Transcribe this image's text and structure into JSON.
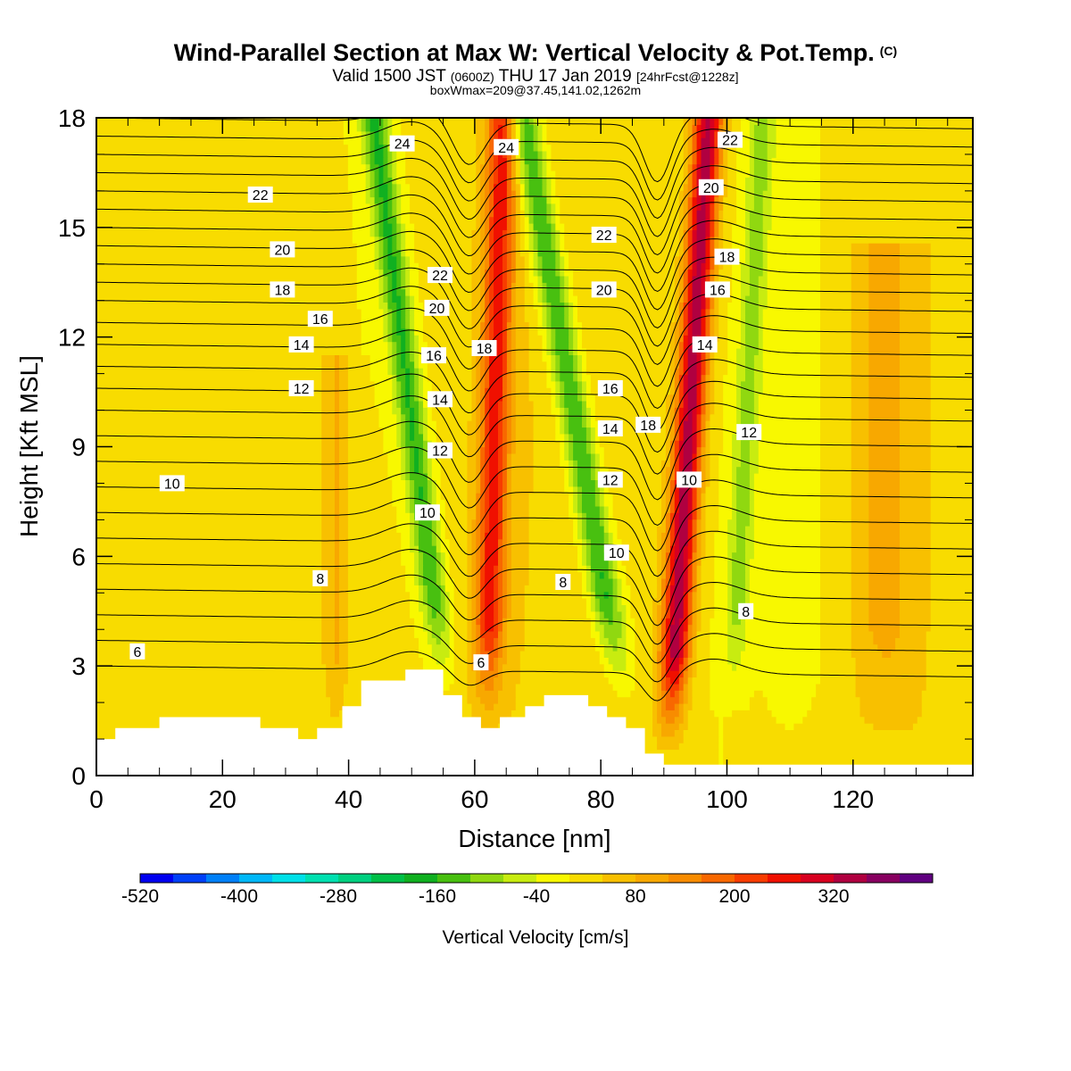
{
  "title": {
    "main": "Wind-Parallel Section at Max W: Vertical Velocity & Pot.Temp.",
    "copyright_mark": "(C)",
    "valid_prefix": "Valid 1500 JST",
    "valid_utc": "(0600Z)",
    "valid_date": "THU 17 Jan 2019",
    "forecast": "[24hrFcst@1228z]",
    "box_info": "boxWmax=209@37.45,141.02,1262m"
  },
  "chart_data": {
    "type": "heatmap",
    "xlabel": "Distance [nm]",
    "ylabel": "Height [Kft MSL]",
    "xlim": [
      0,
      139
    ],
    "ylim": [
      0,
      18
    ],
    "x_ticks": [
      0,
      20,
      40,
      60,
      80,
      100,
      120
    ],
    "y_ticks": [
      0,
      3,
      6,
      9,
      12,
      15,
      18
    ],
    "colorbar": {
      "title": "Vertical Velocity [cm/s]",
      "labels": [
        "-520",
        "-400",
        "-280",
        "-160",
        "-40",
        "80",
        "200",
        "320"
      ],
      "colors": [
        "#0000f0",
        "#0040f8",
        "#0080f8",
        "#00b8f8",
        "#00e0e8",
        "#00e0b0",
        "#00d080",
        "#00c048",
        "#10b020",
        "#48c010",
        "#90d810",
        "#c8ec10",
        "#f8f800",
        "#f8dc00",
        "#f8c000",
        "#f8a800",
        "#f88c00",
        "#f86800",
        "#f83c00",
        "#f01000",
        "#d80020",
        "#b00040",
        "#880060",
        "#600080"
      ],
      "min": -520,
      "step": 40
    },
    "vertical_velocity_features": [
      {
        "x": 55,
        "bottom": 2.8,
        "top": 18,
        "lean": 0.24,
        "peak": -170,
        "width": 2.2
      },
      {
        "x": 62,
        "bottom": 2.0,
        "top": 18,
        "lean": -0.05,
        "peak": 230,
        "width": 2.4
      },
      {
        "x": 83,
        "bottom": 2.6,
        "top": 18,
        "lean": 0.33,
        "peak": -190,
        "width": 2.6
      },
      {
        "x": 91,
        "bottom": 1.2,
        "top": 18,
        "lean": -0.12,
        "peak": 340,
        "width": 2.4
      },
      {
        "x": 101,
        "bottom": 2.5,
        "top": 18,
        "lean": -0.1,
        "peak": -100,
        "width": 2.0
      },
      {
        "x": 38,
        "bottom": 1.0,
        "top": 11,
        "lean": 0.0,
        "peak": 80,
        "width": 2.2
      },
      {
        "x": 125,
        "bottom": 2.0,
        "top": 14,
        "lean": 0.0,
        "peak": 60,
        "width": 4.0
      }
    ],
    "terrain": [
      [
        0,
        1.0
      ],
      [
        3,
        1.0
      ],
      [
        3,
        1.3
      ],
      [
        10,
        1.3
      ],
      [
        10,
        1.6
      ],
      [
        26,
        1.6
      ],
      [
        26,
        1.3
      ],
      [
        32,
        1.3
      ],
      [
        32,
        1.0
      ],
      [
        35,
        1.0
      ],
      [
        35,
        1.3
      ],
      [
        39,
        1.3
      ],
      [
        39,
        1.9
      ],
      [
        42,
        1.9
      ],
      [
        42,
        2.6
      ],
      [
        49,
        2.6
      ],
      [
        49,
        2.9
      ],
      [
        55,
        2.9
      ],
      [
        55,
        2.2
      ],
      [
        58,
        2.2
      ],
      [
        58,
        1.6
      ],
      [
        61,
        1.6
      ],
      [
        61,
        1.3
      ],
      [
        64,
        1.3
      ],
      [
        64,
        1.6
      ],
      [
        68,
        1.6
      ],
      [
        68,
        1.9
      ],
      [
        71,
        1.9
      ],
      [
        71,
        2.2
      ],
      [
        78,
        2.2
      ],
      [
        78,
        1.9
      ],
      [
        81,
        1.9
      ],
      [
        81,
        1.6
      ],
      [
        84,
        1.6
      ],
      [
        84,
        1.3
      ],
      [
        87,
        1.3
      ],
      [
        87,
        0.6
      ],
      [
        90,
        0.6
      ],
      [
        90,
        0.3
      ],
      [
        139,
        0.3
      ],
      [
        139,
        0
      ]
    ],
    "theta_contour_labels": [
      {
        "text": "6",
        "x": 6.5,
        "y": 3.4
      },
      {
        "text": "8",
        "x": 35.5,
        "y": 5.4
      },
      {
        "text": "10",
        "x": 12,
        "y": 8.0
      },
      {
        "text": "12",
        "x": 32.5,
        "y": 10.6
      },
      {
        "text": "14",
        "x": 32.5,
        "y": 11.8
      },
      {
        "text": "16",
        "x": 35.5,
        "y": 12.5
      },
      {
        "text": "18",
        "x": 29.5,
        "y": 13.3
      },
      {
        "text": "20",
        "x": 29.5,
        "y": 14.4
      },
      {
        "text": "22",
        "x": 26,
        "y": 15.9
      },
      {
        "text": "24",
        "x": 48.5,
        "y": 17.3
      },
      {
        "text": "22",
        "x": 54.5,
        "y": 13.7
      },
      {
        "text": "20",
        "x": 54,
        "y": 12.8
      },
      {
        "text": "16",
        "x": 53.5,
        "y": 11.5
      },
      {
        "text": "14",
        "x": 54.5,
        "y": 10.3
      },
      {
        "text": "12",
        "x": 54.5,
        "y": 8.9
      },
      {
        "text": "10",
        "x": 52.5,
        "y": 7.2
      },
      {
        "text": "6",
        "x": 61,
        "y": 3.1
      },
      {
        "text": "24",
        "x": 65,
        "y": 17.2
      },
      {
        "text": "18",
        "x": 61.5,
        "y": 11.7
      },
      {
        "text": "8",
        "x": 74,
        "y": 5.3
      },
      {
        "text": "22",
        "x": 80.5,
        "y": 14.8
      },
      {
        "text": "20",
        "x": 80.5,
        "y": 13.3
      },
      {
        "text": "16",
        "x": 81.5,
        "y": 10.6
      },
      {
        "text": "14",
        "x": 81.5,
        "y": 9.5
      },
      {
        "text": "12",
        "x": 81.5,
        "y": 8.1
      },
      {
        "text": "10",
        "x": 82.5,
        "y": 6.1
      },
      {
        "text": "18",
        "x": 87.5,
        "y": 9.6
      },
      {
        "text": "10",
        "x": 94,
        "y": 8.1
      },
      {
        "text": "14",
        "x": 96.5,
        "y": 11.8
      },
      {
        "text": "16",
        "x": 98.5,
        "y": 13.3
      },
      {
        "text": "18",
        "x": 100,
        "y": 14.2
      },
      {
        "text": "20",
        "x": 97.5,
        "y": 16.1
      },
      {
        "text": "22",
        "x": 100.5,
        "y": 17.4
      },
      {
        "text": "12",
        "x": 103.5,
        "y": 9.4
      },
      {
        "text": "8",
        "x": 103,
        "y": 4.5
      }
    ],
    "theta_levels": [
      3,
      3.7,
      4.4,
      5.1,
      5.8,
      6.5,
      7.2,
      7.9,
      8.6,
      9.3,
      10,
      10.6,
      11.2,
      11.8,
      12.4,
      13,
      13.5,
      14,
      14.5,
      15,
      15.5,
      16,
      16.5,
      17,
      17.5,
      18
    ]
  }
}
